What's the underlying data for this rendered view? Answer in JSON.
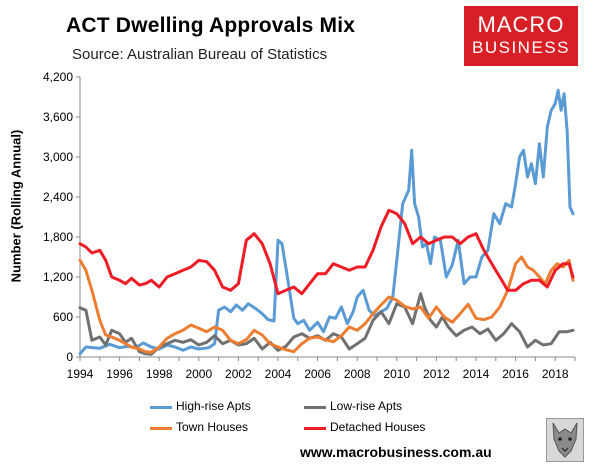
{
  "title": "ACT Dwelling Approvals Mix",
  "subtitle": "Source: Australian Bureau of Statistics",
  "logo": {
    "line1": "MACRO",
    "line2": "BUSINESS",
    "color": "#d91f26"
  },
  "footer_url": "www.macrobusiness.com.au",
  "chart_data": {
    "type": "line",
    "title": "ACT Dwelling Approvals Mix",
    "ylabel": "Number (Rolling Annual)",
    "xlabel": "",
    "xlim": [
      1994,
      2019
    ],
    "ylim": [
      0,
      4200
    ],
    "yticks": [
      0,
      600,
      1200,
      1800,
      2400,
      3000,
      3600,
      4200
    ],
    "ytick_labels": [
      "0",
      "600",
      "1,200",
      "1,800",
      "2,400",
      "3,000",
      "3,600",
      "4,200"
    ],
    "xticks": [
      1994,
      1996,
      1998,
      2000,
      2002,
      2004,
      2006,
      2008,
      2010,
      2012,
      2014,
      2016,
      2018
    ],
    "grid": false,
    "legend": "bottom",
    "series": [
      {
        "name": "High-rise Apts",
        "color": "#5b9bd5",
        "x": [
          1994.0,
          1994.3,
          1995.0,
          1995.5,
          1996.0,
          1996.4,
          1996.8,
          1997.2,
          1997.6,
          1998.0,
          1998.4,
          1998.8,
          1999.2,
          1999.6,
          2000.0,
          2000.5,
          2000.8,
          2001.0,
          2001.3,
          2001.6,
          2001.9,
          2002.2,
          2002.5,
          2002.9,
          2003.2,
          2003.5,
          2003.8,
          2004.0,
          2004.2,
          2004.5,
          2004.8,
          2005.0,
          2005.3,
          2005.6,
          2006.0,
          2006.3,
          2006.6,
          2006.9,
          2007.2,
          2007.5,
          2007.8,
          2008.0,
          2008.3,
          2008.6,
          2008.9,
          2009.2,
          2009.5,
          2009.8,
          2010.0,
          2010.3,
          2010.6,
          2010.75,
          2010.9,
          2011.1,
          2011.3,
          2011.5,
          2011.7,
          2011.9,
          2012.2,
          2012.5,
          2012.8,
          2013.1,
          2013.4,
          2013.7,
          2014.0,
          2014.3,
          2014.6,
          2014.9,
          2015.2,
          2015.5,
          2015.8,
          2016.0,
          2016.2,
          2016.4,
          2016.6,
          2016.8,
          2017.0,
          2017.2,
          2017.4,
          2017.6,
          2017.8,
          2018.0,
          2018.15,
          2018.3,
          2018.45,
          2018.6,
          2018.75,
          2018.9
        ],
        "y": [
          50,
          150,
          130,
          190,
          140,
          160,
          140,
          210,
          150,
          120,
          180,
          150,
          100,
          150,
          120,
          140,
          200,
          700,
          750,
          680,
          780,
          700,
          800,
          720,
          650,
          560,
          540,
          1750,
          1700,
          1150,
          580,
          500,
          550,
          400,
          520,
          380,
          600,
          580,
          750,
          500,
          680,
          900,
          1000,
          700,
          620,
          680,
          730,
          900,
          1450,
          2300,
          2500,
          3100,
          2300,
          2100,
          1650,
          1700,
          1400,
          1800,
          1750,
          1200,
          1380,
          1750,
          1100,
          1200,
          1200,
          1500,
          1600,
          2150,
          2000,
          2300,
          2250,
          2600,
          3000,
          3100,
          2700,
          2900,
          2600,
          3200,
          2700,
          3450,
          3700,
          3800,
          4000,
          3700,
          3950,
          3400,
          2250,
          2150
        ]
      },
      {
        "name": "Low-rise Apts",
        "color": "#707070",
        "x": [
          1994.0,
          1994.3,
          1994.6,
          1995.0,
          1995.3,
          1995.6,
          1996.0,
          1996.3,
          1996.6,
          1997.0,
          1997.3,
          1997.6,
          1998.0,
          1998.4,
          1998.8,
          1999.2,
          1999.6,
          2000.0,
          2000.4,
          2000.8,
          2001.2,
          2001.6,
          2002.0,
          2002.4,
          2002.8,
          2003.2,
          2003.6,
          2004.0,
          2004.4,
          2004.8,
          2005.2,
          2005.6,
          2006.0,
          2006.4,
          2006.8,
          2007.2,
          2007.6,
          2008.0,
          2008.4,
          2008.8,
          2009.2,
          2009.6,
          2010.0,
          2010.4,
          2010.8,
          2011.2,
          2011.4,
          2011.7,
          2012.0,
          2012.3,
          2012.6,
          2013.0,
          2013.4,
          2013.8,
          2014.2,
          2014.6,
          2015.0,
          2015.4,
          2015.8,
          2016.2,
          2016.6,
          2017.0,
          2017.4,
          2017.8,
          2018.2,
          2018.6,
          2018.9
        ],
        "y": [
          740,
          700,
          250,
          300,
          180,
          400,
          350,
          220,
          280,
          80,
          50,
          40,
          150,
          200,
          250,
          220,
          260,
          180,
          220,
          320,
          200,
          250,
          180,
          200,
          280,
          120,
          220,
          100,
          160,
          300,
          350,
          280,
          320,
          250,
          350,
          300,
          120,
          200,
          280,
          550,
          680,
          500,
          800,
          750,
          500,
          950,
          750,
          550,
          450,
          600,
          450,
          320,
          400,
          450,
          350,
          420,
          250,
          350,
          500,
          380,
          150,
          250,
          180,
          200,
          380,
          380,
          400
        ]
      },
      {
        "name": "Town Houses",
        "color": "#ed7d31",
        "x": [
          1994.0,
          1994.3,
          1994.6,
          1995.0,
          1995.3,
          1995.6,
          1996.0,
          1996.3,
          1996.6,
          1997.0,
          1997.3,
          1997.6,
          1998.0,
          1998.4,
          1998.8,
          1999.2,
          1999.6,
          2000.0,
          2000.4,
          2000.8,
          2001.2,
          2001.6,
          2002.0,
          2002.4,
          2002.8,
          2003.2,
          2003.6,
          2004.0,
          2004.4,
          2004.8,
          2005.2,
          2005.6,
          2006.0,
          2006.4,
          2006.8,
          2007.2,
          2007.6,
          2008.0,
          2008.4,
          2008.8,
          2009.2,
          2009.6,
          2010.0,
          2010.4,
          2010.8,
          2011.2,
          2011.6,
          2012.0,
          2012.4,
          2012.8,
          2013.2,
          2013.6,
          2014.0,
          2014.4,
          2014.8,
          2015.2,
          2015.6,
          2016.0,
          2016.3,
          2016.6,
          2016.9,
          2017.2,
          2017.5,
          2017.8,
          2018.1,
          2018.4,
          2018.7,
          2018.9
        ],
        "y": [
          1450,
          1300,
          1000,
          550,
          330,
          300,
          250,
          200,
          150,
          120,
          80,
          70,
          150,
          280,
          350,
          400,
          480,
          430,
          380,
          450,
          400,
          250,
          200,
          260,
          400,
          330,
          200,
          150,
          110,
          80,
          200,
          280,
          300,
          260,
          230,
          320,
          450,
          400,
          500,
          650,
          780,
          900,
          850,
          760,
          720,
          750,
          580,
          750,
          600,
          520,
          650,
          790,
          580,
          560,
          600,
          750,
          1000,
          1400,
          1500,
          1350,
          1300,
          1200,
          1100,
          1300,
          1400,
          1350,
          1450,
          1150
        ]
      },
      {
        "name": "Detached Houses",
        "color": "#ee1c25",
        "x": [
          1994.0,
          1994.3,
          1994.6,
          1995.0,
          1995.3,
          1995.6,
          1996.0,
          1996.3,
          1996.6,
          1997.0,
          1997.3,
          1997.6,
          1998.0,
          1998.4,
          1998.8,
          1999.2,
          1999.6,
          2000.0,
          2000.4,
          2000.8,
          2001.2,
          2001.6,
          2002.0,
          2002.4,
          2002.8,
          2003.2,
          2003.6,
          2004.0,
          2004.4,
          2004.8,
          2005.2,
          2005.6,
          2006.0,
          2006.4,
          2006.8,
          2007.2,
          2007.6,
          2008.0,
          2008.4,
          2008.8,
          2009.2,
          2009.6,
          2010.0,
          2010.4,
          2010.8,
          2011.2,
          2011.6,
          2012.0,
          2012.4,
          2012.8,
          2013.2,
          2013.6,
          2014.0,
          2014.4,
          2014.8,
          2015.2,
          2015.6,
          2016.0,
          2016.4,
          2016.8,
          2017.2,
          2017.6,
          2018.0,
          2018.4,
          2018.7,
          2018.9
        ],
        "y": [
          1700,
          1650,
          1560,
          1600,
          1450,
          1200,
          1150,
          1100,
          1180,
          1080,
          1100,
          1150,
          1050,
          1200,
          1250,
          1300,
          1350,
          1450,
          1430,
          1300,
          1050,
          1000,
          1100,
          1750,
          1850,
          1700,
          1400,
          950,
          1000,
          1050,
          950,
          1100,
          1250,
          1250,
          1400,
          1350,
          1300,
          1350,
          1350,
          1600,
          1950,
          2200,
          2150,
          2000,
          1700,
          1800,
          1700,
          1750,
          1800,
          1800,
          1700,
          1800,
          1850,
          1600,
          1400,
          1200,
          1000,
          1000,
          1100,
          1150,
          1150,
          1050,
          1300,
          1400,
          1400,
          1200
        ]
      }
    ]
  }
}
